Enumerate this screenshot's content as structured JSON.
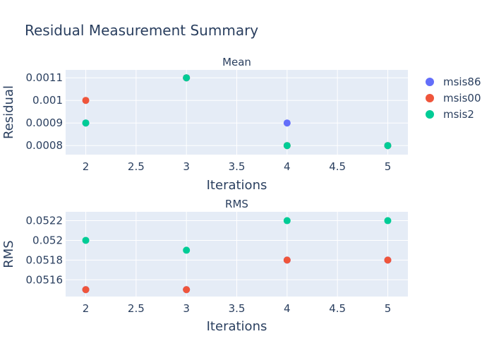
{
  "colors": {
    "plot_bg": "#e5ecf6",
    "grid": "#ffffff",
    "text": "#2a3f5f",
    "msis86": "#636efa",
    "msis00": "#ef553b",
    "msis2": "#00cc96"
  },
  "chart_data": {
    "type": "scatter",
    "title": "Residual Measurement Summary",
    "legend": {
      "placement": "top-right",
      "entries": [
        "msis86",
        "msis00",
        "msis2"
      ]
    },
    "x_ticks": [
      "2",
      "2.5",
      "3",
      "3.5",
      "4",
      "4.5",
      "5"
    ],
    "x_ticks_values": [
      2,
      2.5,
      3,
      3.5,
      4,
      4.5,
      5
    ],
    "xlim": [
      1.8,
      5.2
    ],
    "subplots": [
      {
        "subtitle": "Mean",
        "xlabel": "Iterations",
        "ylabel": "Residual",
        "ylim": [
          0.00076,
          0.001135
        ],
        "y_ticks": [
          "0.0008",
          "0.0009",
          "0.001",
          "0.0011"
        ],
        "y_ticks_values": [
          0.0008,
          0.0009,
          0.001,
          0.0011
        ],
        "grid": true,
        "series": [
          {
            "name": "msis86",
            "x": [
              2,
              3,
              4,
              5
            ],
            "y": [
              0.0009,
              0.0011,
              0.0009,
              0.0008
            ]
          },
          {
            "name": "msis00",
            "x": [
              2,
              3,
              4,
              5
            ],
            "y": [
              0.001,
              0.0011,
              0.0008,
              0.0008
            ]
          },
          {
            "name": "msis2",
            "x": [
              2,
              3,
              4,
              5
            ],
            "y": [
              0.0009,
              0.0011,
              0.0008,
              0.0008
            ]
          }
        ]
      },
      {
        "subtitle": "RMS",
        "xlabel": "Iterations",
        "ylabel": "RMS",
        "ylim": [
          0.05143,
          0.05229
        ],
        "y_ticks": [
          "0.0516",
          "0.0518",
          "0.052",
          "0.0522"
        ],
        "y_ticks_values": [
          0.0516,
          0.0518,
          0.052,
          0.0522
        ],
        "grid": true,
        "series": [
          {
            "name": "msis86",
            "x": [
              2,
              3,
              4,
              5
            ],
            "y": [
              0.0515,
              0.0515,
              0.0518,
              0.0518
            ]
          },
          {
            "name": "msis00",
            "x": [
              2,
              3,
              4,
              5
            ],
            "y": [
              0.0515,
              0.0515,
              0.0518,
              0.0518
            ]
          },
          {
            "name": "msis2",
            "x": [
              2,
              3,
              4,
              5
            ],
            "y": [
              0.052,
              0.0519,
              0.0522,
              0.0522
            ]
          }
        ]
      }
    ]
  }
}
